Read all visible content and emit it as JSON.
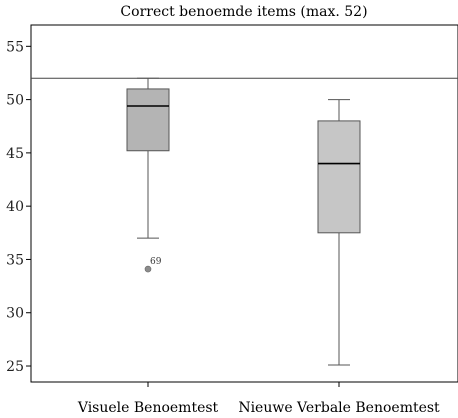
{
  "chart_data": {
    "type": "boxplot",
    "title": "Correct benoemde items (max. 52)",
    "xlabel": "",
    "ylabel": "",
    "ylim": [
      23.5,
      57
    ],
    "yticks": [
      25,
      30,
      35,
      40,
      45,
      50,
      55
    ],
    "reference_line": 52,
    "grid": false,
    "categories": [
      "Visuele Benoemtest",
      "Nieuwe Verbale Benoemtest"
    ],
    "series": [
      {
        "category": "Visuele Benoemtest",
        "whisker_low": 37,
        "q1": 45.2,
        "median": 49.4,
        "q3": 51,
        "whisker_high": 52,
        "fill": "#b4b4b4",
        "outliers": [
          {
            "value": 34.1,
            "label": "69"
          }
        ]
      },
      {
        "category": "Nieuwe Verbale Benoemtest",
        "whisker_low": 25.1,
        "q1": 37.5,
        "median": 44,
        "q3": 48,
        "whisker_high": 50,
        "fill": "#c6c6c6",
        "outliers": []
      }
    ]
  },
  "colors": {
    "axis": "#000000",
    "whisker": "#555555",
    "median": "#000000",
    "box_stroke": "#555555",
    "outlier": "#8c8c8c",
    "reference_line": "#444444"
  }
}
